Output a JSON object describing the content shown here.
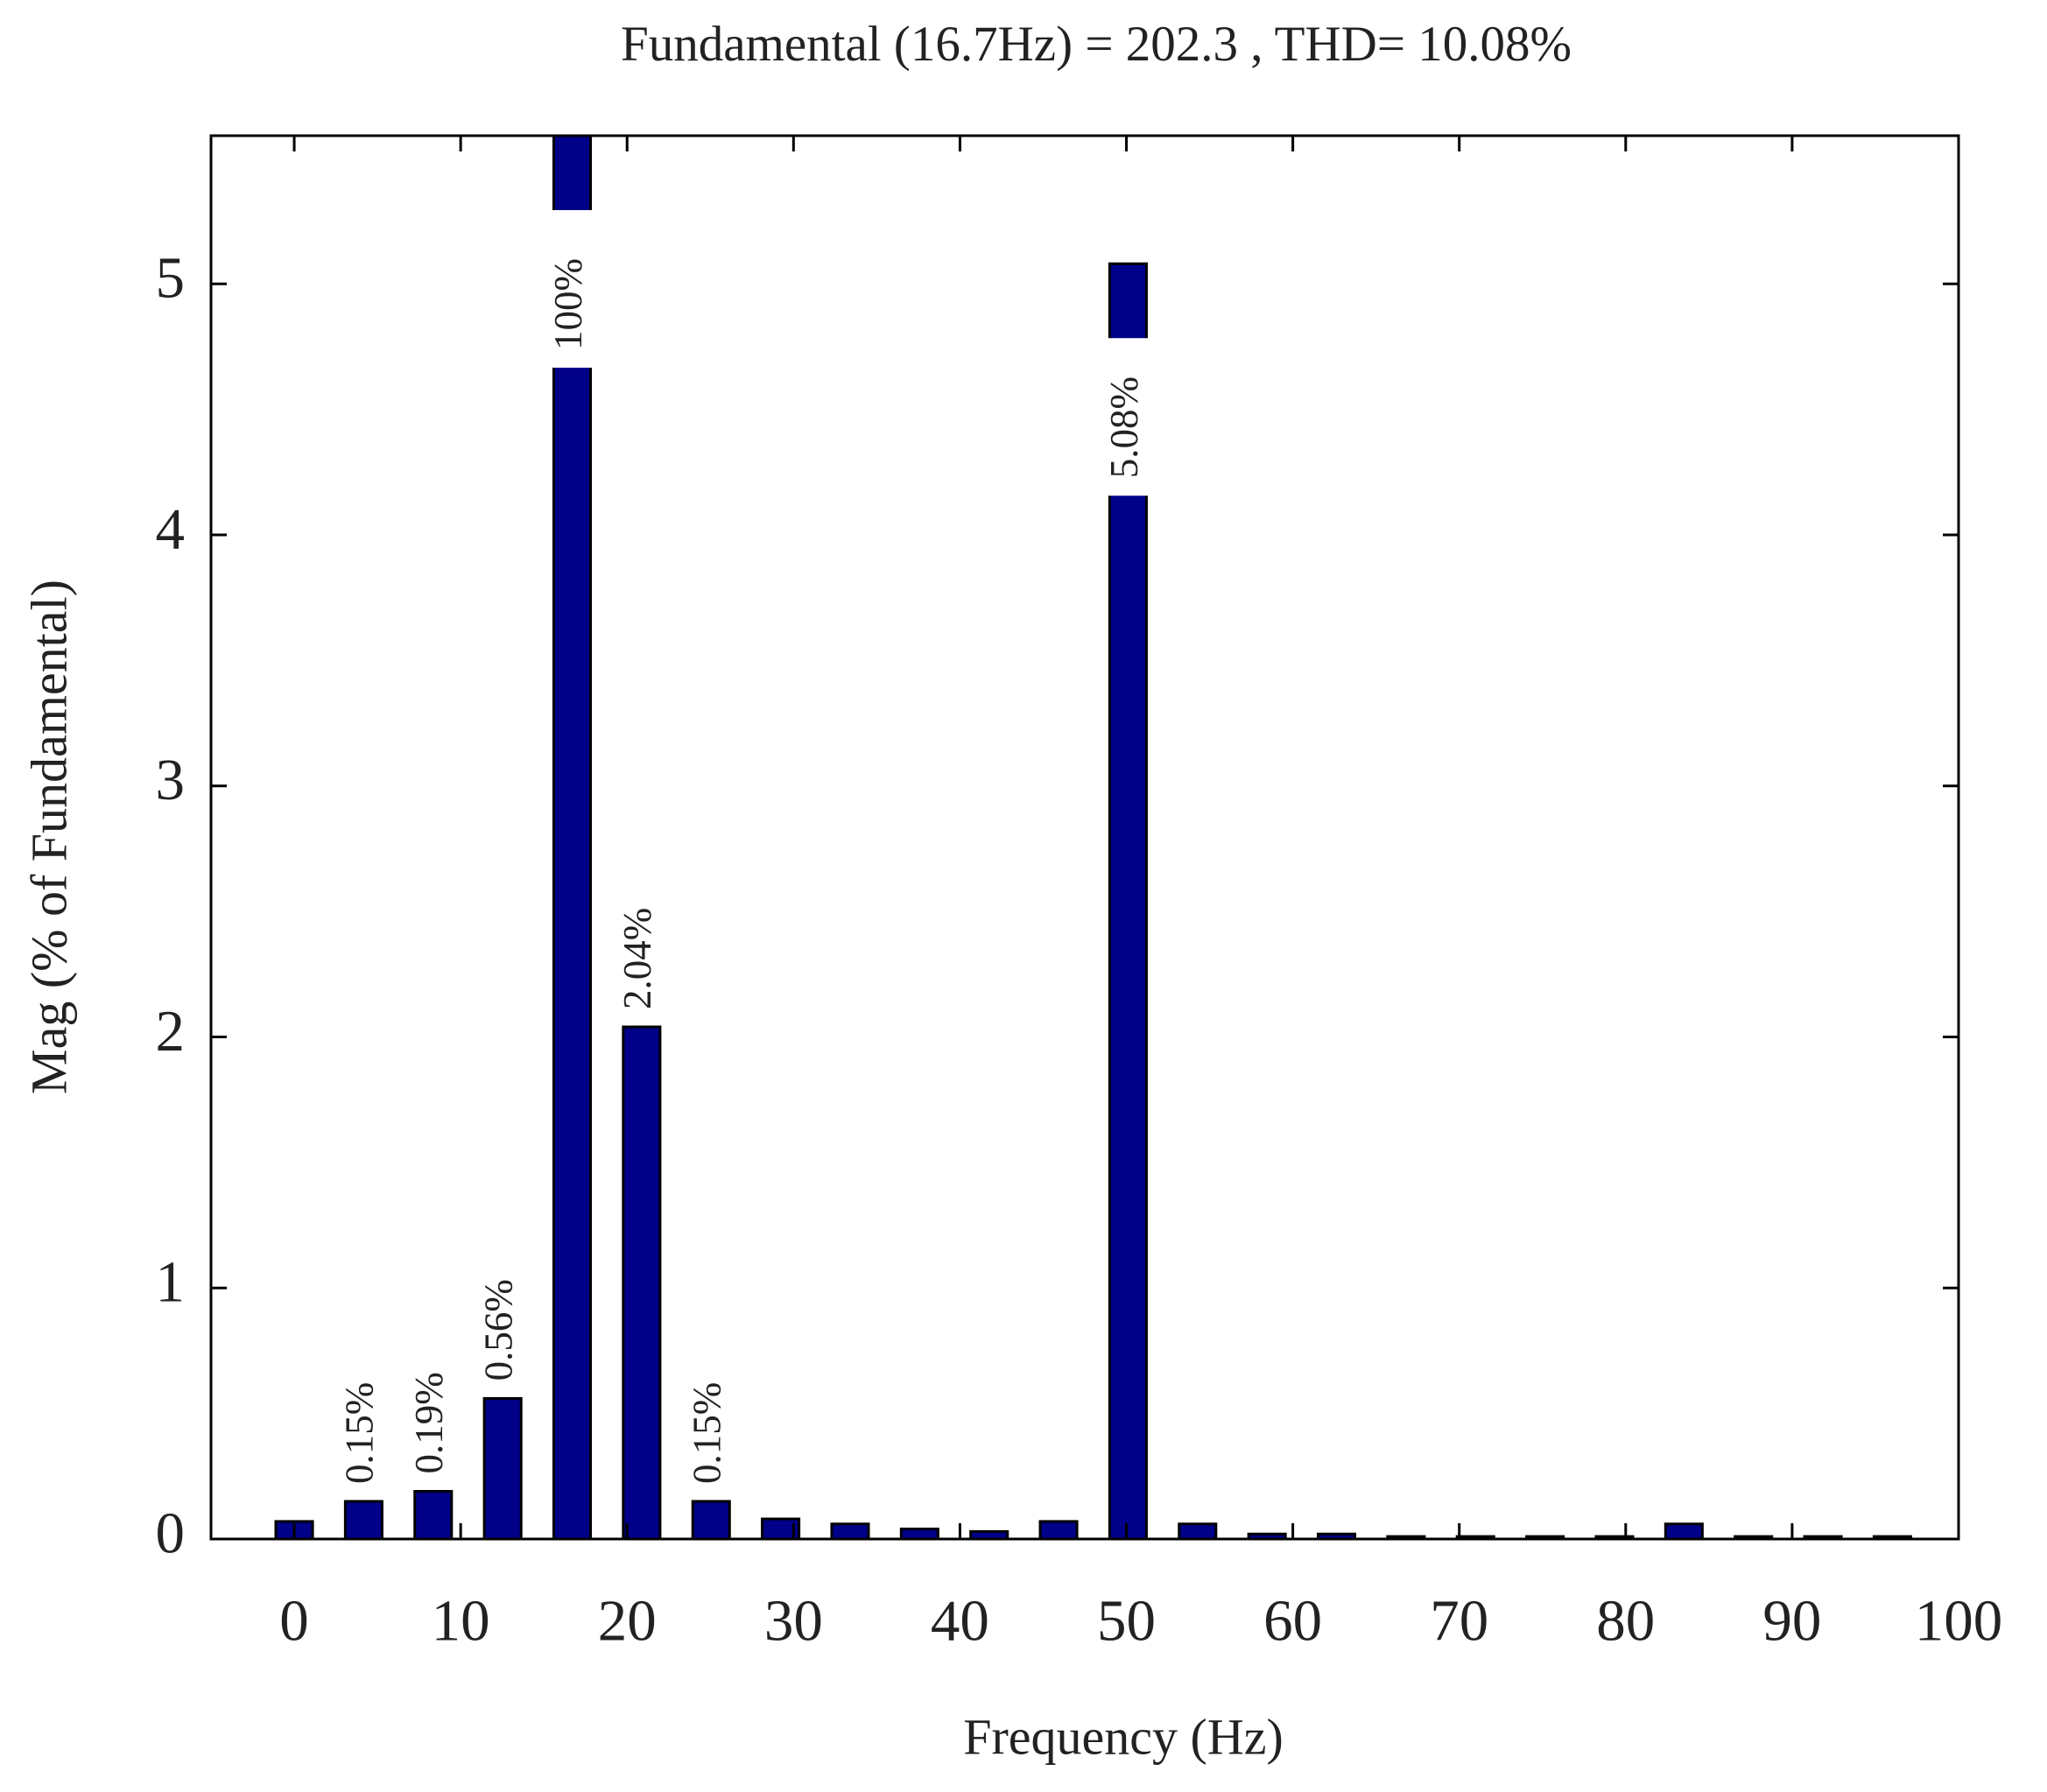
{
  "chart_data": {
    "type": "bar",
    "title": "Fundamental (16.7Hz) = 202.3 , THD= 10.08%",
    "xlabel": "Frequency (Hz)",
    "ylabel": "Mag (% of Fundamental)",
    "x": [
      0,
      4.175,
      8.35,
      12.525,
      16.7,
      20.875,
      25.05,
      29.225,
      33.4,
      37.575,
      41.75,
      45.925,
      50.1,
      54.275,
      58.45,
      62.625,
      66.8,
      70.975,
      75.15,
      79.325,
      83.5,
      87.675,
      91.85,
      96.025
    ],
    "values": [
      0.07,
      0.15,
      0.19,
      0.56,
      100,
      2.04,
      0.15,
      0.08,
      0.06,
      0.04,
      0.03,
      0.07,
      5.08,
      0.06,
      0.02,
      0.02,
      0.01,
      0.01,
      0.01,
      0.01,
      0.06,
      0.01,
      0.01,
      0.01
    ],
    "value_labels": [
      null,
      "0.15%",
      "0.19%",
      "0.56%",
      "100%",
      "2.04%",
      "0.15%",
      null,
      null,
      null,
      null,
      null,
      "5.08%",
      null,
      null,
      null,
      null,
      null,
      null,
      null,
      null,
      null,
      null,
      null
    ],
    "color": "#000088",
    "xlim": [
      -5,
      100
    ],
    "xticks": [
      0,
      10,
      20,
      30,
      40,
      50,
      60,
      70,
      80,
      90,
      100
    ],
    "ylim": [
      0,
      5.59
    ],
    "yticks": [
      0,
      1,
      2,
      3,
      4,
      5
    ],
    "grid": false
  }
}
